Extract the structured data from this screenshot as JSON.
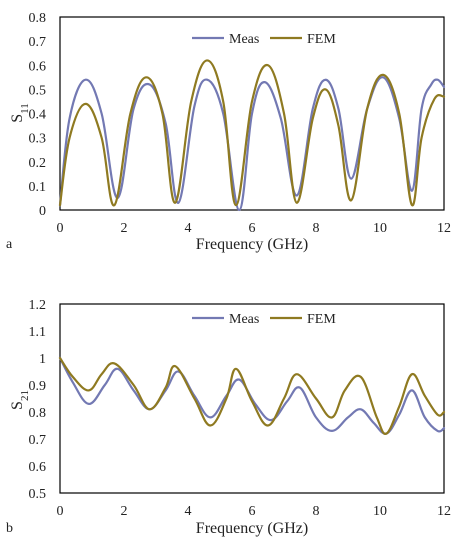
{
  "colors": {
    "meas": "#7379b3",
    "fem": "#8f7a21"
  },
  "chart_data": [
    {
      "type": "line",
      "panel_label": "a",
      "xlabel": "Frequency (GHz)",
      "ylabel_main": "S",
      "ylabel_sub": "11",
      "xlim": [
        0,
        12
      ],
      "ylim": [
        0,
        0.8
      ],
      "xticks": [
        "0",
        "2",
        "4",
        "6",
        "8",
        "10",
        "12"
      ],
      "yticks": [
        "0",
        "0.1",
        "0.2",
        "0.3",
        "0.4",
        "0.5",
        "0.6",
        "0.7",
        "0.8"
      ],
      "grid": false,
      "legend": "top-center",
      "series": [
        {
          "name": "Meas",
          "x": [
            0,
            0.3,
            0.8,
            1.3,
            1.8,
            2.3,
            2.8,
            3.3,
            3.7,
            4.2,
            4.6,
            5.1,
            5.6,
            6.0,
            6.4,
            6.9,
            7.4,
            7.9,
            8.3,
            8.7,
            9.1,
            9.6,
            10.1,
            10.6,
            11.0,
            11.3,
            11.6,
            11.8,
            12.0
          ],
          "y": [
            0.02,
            0.38,
            0.54,
            0.4,
            0.05,
            0.42,
            0.52,
            0.36,
            0.03,
            0.43,
            0.54,
            0.4,
            0.0,
            0.4,
            0.53,
            0.38,
            0.06,
            0.42,
            0.54,
            0.42,
            0.13,
            0.42,
            0.55,
            0.38,
            0.08,
            0.42,
            0.52,
            0.54,
            0.51
          ]
        },
        {
          "name": "FEM",
          "x": [
            0,
            0.3,
            0.8,
            1.3,
            1.7,
            2.2,
            2.7,
            3.2,
            3.6,
            4.1,
            4.6,
            5.1,
            5.5,
            6.0,
            6.5,
            7.0,
            7.4,
            7.9,
            8.3,
            8.7,
            9.1,
            9.6,
            10.1,
            10.6,
            11.0,
            11.3,
            11.7,
            12.0
          ],
          "y": [
            0.02,
            0.3,
            0.44,
            0.3,
            0.02,
            0.4,
            0.55,
            0.4,
            0.03,
            0.45,
            0.62,
            0.45,
            0.02,
            0.45,
            0.6,
            0.4,
            0.03,
            0.38,
            0.5,
            0.35,
            0.04,
            0.42,
            0.56,
            0.4,
            0.02,
            0.3,
            0.46,
            0.47
          ]
        }
      ]
    },
    {
      "type": "line",
      "panel_label": "b",
      "xlabel": "Frequency (GHz)",
      "ylabel_main": "S",
      "ylabel_sub": "21",
      "xlim": [
        0,
        12
      ],
      "ylim": [
        0.5,
        1.2
      ],
      "xticks": [
        "0",
        "2",
        "4",
        "6",
        "8",
        "10",
        "12"
      ],
      "yticks": [
        "0.5",
        "0.6",
        "0.7",
        "0.8",
        "0.9",
        "1",
        "1.1",
        "1.2"
      ],
      "grid": false,
      "legend": "top-center",
      "series": [
        {
          "name": "Meas",
          "x": [
            0,
            0.4,
            0.9,
            1.4,
            1.8,
            2.3,
            2.8,
            3.3,
            3.7,
            4.2,
            4.7,
            5.2,
            5.6,
            6.1,
            6.6,
            7.1,
            7.5,
            8.0,
            8.5,
            9.0,
            9.4,
            9.8,
            10.2,
            10.6,
            11.0,
            11.4,
            11.8,
            12.0
          ],
          "y": [
            1.0,
            0.91,
            0.83,
            0.9,
            0.96,
            0.88,
            0.81,
            0.88,
            0.95,
            0.86,
            0.78,
            0.86,
            0.92,
            0.83,
            0.77,
            0.84,
            0.89,
            0.78,
            0.73,
            0.78,
            0.81,
            0.76,
            0.72,
            0.79,
            0.88,
            0.78,
            0.73,
            0.74
          ]
        },
        {
          "name": "FEM",
          "x": [
            0,
            0.4,
            0.9,
            1.3,
            1.7,
            2.3,
            2.8,
            3.3,
            3.6,
            4.2,
            4.7,
            5.2,
            5.5,
            6.0,
            6.5,
            7.0,
            7.4,
            8.0,
            8.5,
            8.9,
            9.4,
            9.9,
            10.2,
            10.6,
            11.0,
            11.4,
            11.8,
            12.0
          ],
          "y": [
            1.0,
            0.93,
            0.88,
            0.94,
            0.98,
            0.9,
            0.81,
            0.89,
            0.97,
            0.85,
            0.75,
            0.85,
            0.96,
            0.84,
            0.75,
            0.85,
            0.94,
            0.85,
            0.78,
            0.88,
            0.93,
            0.78,
            0.72,
            0.82,
            0.94,
            0.86,
            0.79,
            0.8
          ]
        }
      ]
    }
  ]
}
